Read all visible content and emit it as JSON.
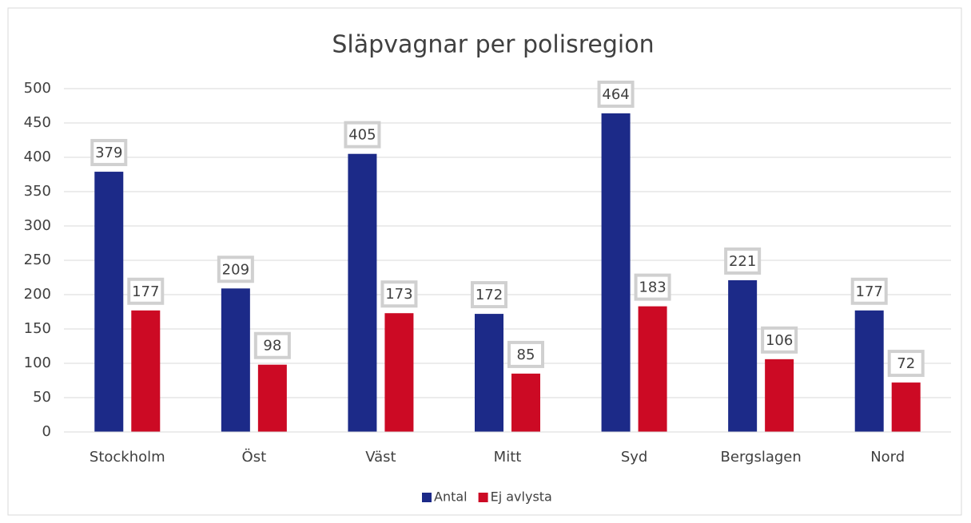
{
  "chart_data": {
    "type": "bar",
    "title": "Släpvagnar per polisregion",
    "categories": [
      "Stockholm",
      "Öst",
      "Väst",
      "Mitt",
      "Syd",
      "Bergslagen",
      "Nord"
    ],
    "series": [
      {
        "name": "Antal",
        "color": "#1c2a88",
        "values": [
          379,
          209,
          405,
          172,
          464,
          221,
          177
        ]
      },
      {
        "name": "Ej avlysta",
        "color": "#cc0a24",
        "values": [
          177,
          98,
          173,
          85,
          183,
          106,
          72
        ]
      }
    ],
    "ylim": [
      0,
      500
    ],
    "yticks": [
      0,
      50,
      100,
      150,
      200,
      250,
      300,
      350,
      400,
      450,
      500
    ],
    "grid": true,
    "legend": "bottom"
  }
}
